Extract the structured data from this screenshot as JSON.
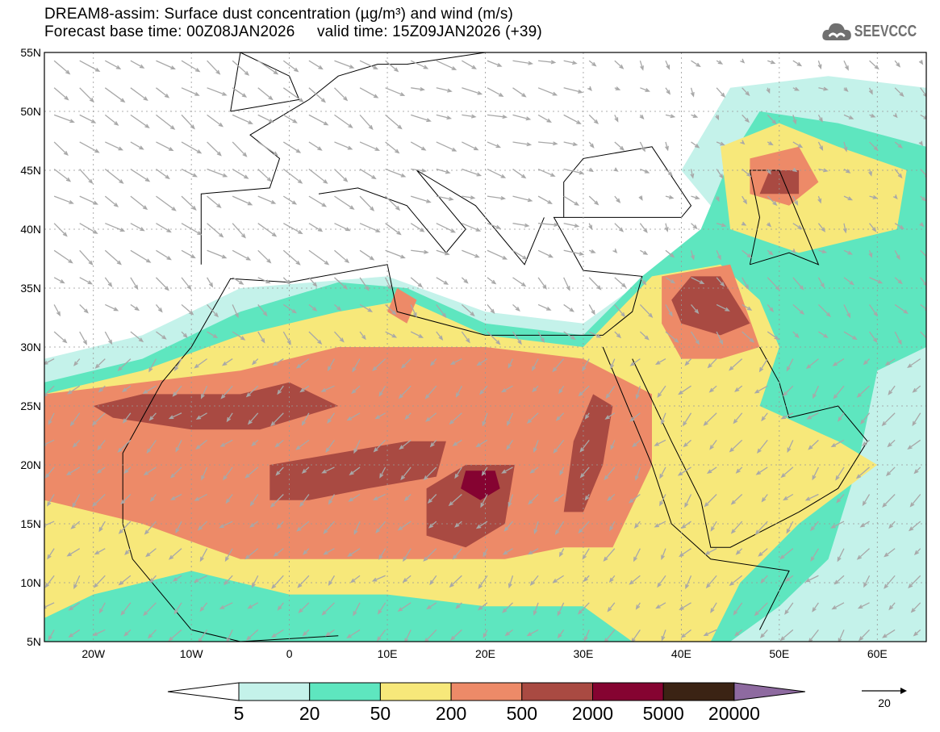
{
  "header": {
    "title": "DREAM8-assim: Surface dust concentration (µg/m³) and wind (m/s)",
    "subtitle": "Forecast base time: 00Z08JAN2026     valid time: 15Z09JAN2026 (+39)",
    "logo_text": "SEEVCCC"
  },
  "map": {
    "lon_range": [
      -25,
      65
    ],
    "lat_range": [
      5,
      55
    ],
    "lat_labels": [
      "5N",
      "10N",
      "15N",
      "20N",
      "25N",
      "30N",
      "35N",
      "40N",
      "45N",
      "50N",
      "55N"
    ],
    "lon_labels": [
      "20W",
      "10W",
      "0",
      "10E",
      "20E",
      "30E",
      "40E",
      "50E",
      "60E"
    ]
  },
  "colorbar": {
    "colors": [
      "#c4f2ea",
      "#5ee6bf",
      "#f7e87a",
      "#ed8a68",
      "#a94a42",
      "#850331",
      "#3b2314"
    ],
    "under_color": "#ffffff",
    "over_color": "#8e6aa0",
    "labels": [
      "5",
      "20",
      "50",
      "200",
      "500",
      "2000",
      "5000",
      "20000"
    ]
  },
  "wind_key": {
    "value": "20"
  }
}
